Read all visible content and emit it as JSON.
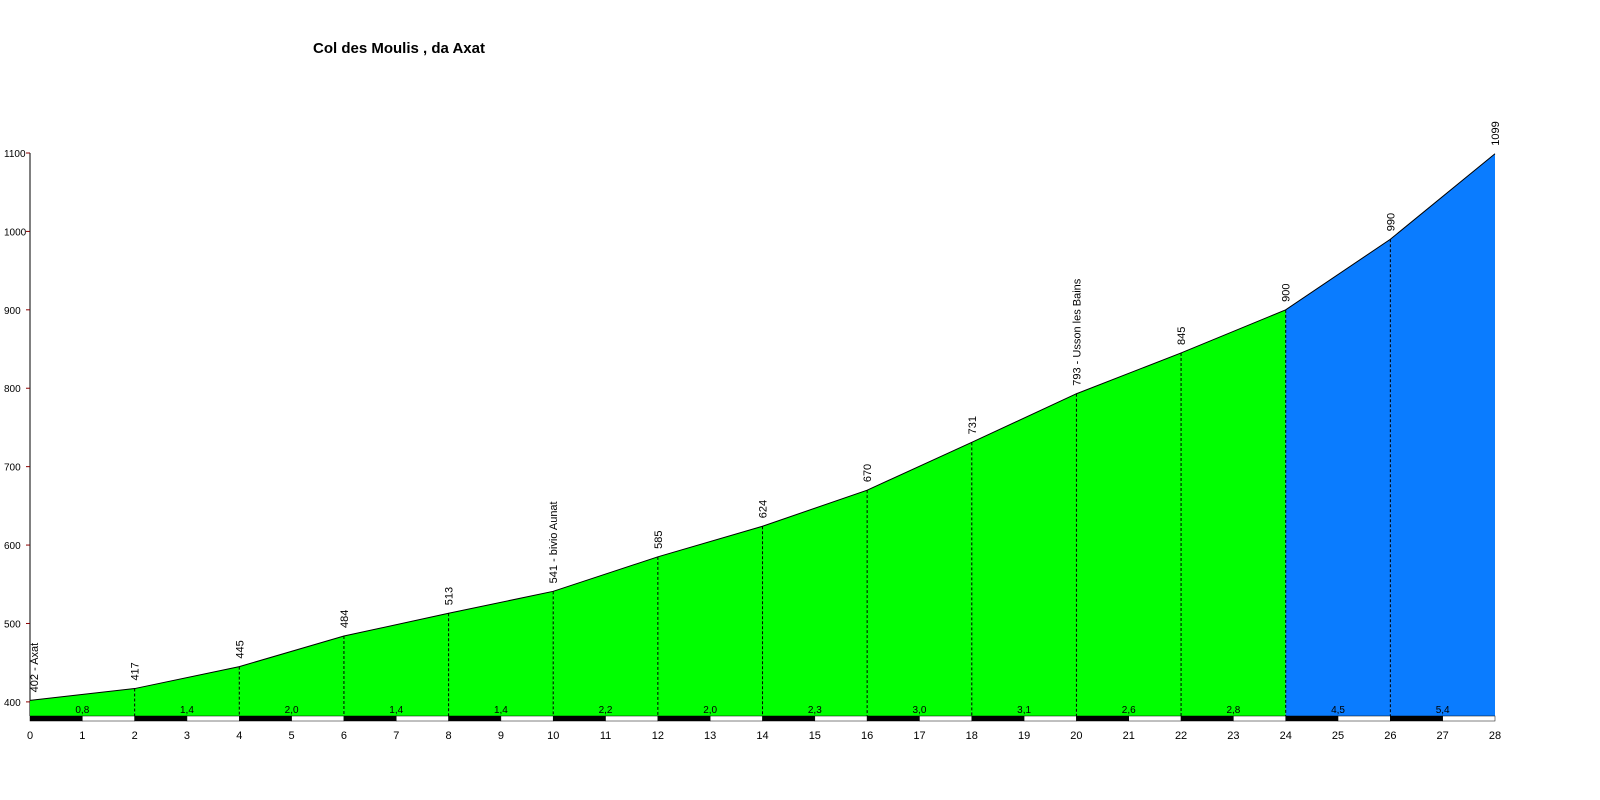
{
  "chart_data": {
    "type": "elevation-profile",
    "title": "Col des Moulis , da Axat",
    "x": [
      0,
      2,
      4,
      6,
      8,
      10,
      12,
      14,
      16,
      18,
      20,
      22,
      24,
      26,
      28
    ],
    "values": [
      402,
      417,
      445,
      484,
      513,
      541,
      585,
      624,
      670,
      731,
      793,
      845,
      900,
      990,
      1099
    ],
    "value_labels": [
      "402 - Axat",
      "417",
      "445",
      "484",
      "513",
      "541 - bivio Aunat",
      "585",
      "624",
      "670",
      "731",
      "793 - Usson les Bains",
      "845",
      "900",
      "990",
      "1099"
    ],
    "segments": {
      "values": [
        0.8,
        1.4,
        2.0,
        1.4,
        1.4,
        2.2,
        2.0,
        2.3,
        3.0,
        3.1,
        2.6,
        2.8,
        4.5,
        5.4
      ],
      "value_labels": [
        "0,8",
        "1,4",
        "2,0",
        "1,4",
        "1,4",
        "2,2",
        "2,0",
        "2,3",
        "3,0",
        "3,1",
        "2,6",
        "2,8",
        "4,5",
        "5,4"
      ],
      "colors": [
        "#00ff00",
        "#00ff00",
        "#00ff00",
        "#00ff00",
        "#00ff00",
        "#00ff00",
        "#00ff00",
        "#00ff00",
        "#00ff00",
        "#00ff00",
        "#00ff00",
        "#00ff00",
        "#0a7cff",
        "#0a7cff"
      ]
    },
    "xlim": [
      0,
      28
    ],
    "xticks": [
      0,
      1,
      2,
      3,
      4,
      5,
      6,
      7,
      8,
      9,
      10,
      11,
      12,
      13,
      14,
      15,
      16,
      17,
      18,
      19,
      20,
      21,
      22,
      23,
      24,
      25,
      26,
      27,
      28
    ],
    "ylim": [
      382,
      1100
    ],
    "yticks": [
      400,
      500,
      600,
      700,
      800,
      900,
      1000,
      1100
    ]
  }
}
